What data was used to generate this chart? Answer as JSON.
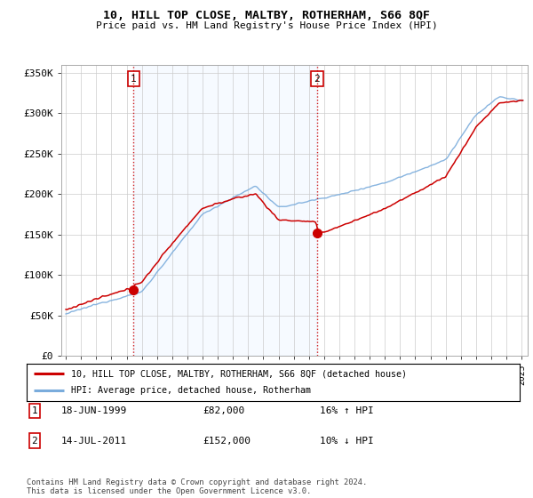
{
  "title": "10, HILL TOP CLOSE, MALTBY, ROTHERHAM, S66 8QF",
  "subtitle": "Price paid vs. HM Land Registry's House Price Index (HPI)",
  "legend_line1": "10, HILL TOP CLOSE, MALTBY, ROTHERHAM, S66 8QF (detached house)",
  "legend_line2": "HPI: Average price, detached house, Rotherham",
  "sale1_label": "1",
  "sale1_date": "18-JUN-1999",
  "sale1_price": "£82,000",
  "sale1_hpi": "16% ↑ HPI",
  "sale1_year": 1999.46,
  "sale1_value": 82000,
  "sale2_label": "2",
  "sale2_date": "14-JUL-2011",
  "sale2_price": "£152,000",
  "sale2_hpi": "10% ↓ HPI",
  "sale2_year": 2011.54,
  "sale2_value": 152000,
  "hpi_color": "#7aacdc",
  "price_color": "#cc0000",
  "vline_color": "#cc0000",
  "shade_color": "#ddeeff",
  "ylim": [
    0,
    360000
  ],
  "yticks": [
    0,
    50000,
    100000,
    150000,
    200000,
    250000,
    300000,
    350000
  ],
  "ytick_labels": [
    "£0",
    "£50K",
    "£100K",
    "£150K",
    "£200K",
    "£250K",
    "£300K",
    "£350K"
  ],
  "footer": "Contains HM Land Registry data © Crown copyright and database right 2024.\nThis data is licensed under the Open Government Licence v3.0.",
  "background_color": "#ffffff",
  "grid_color": "#cccccc"
}
